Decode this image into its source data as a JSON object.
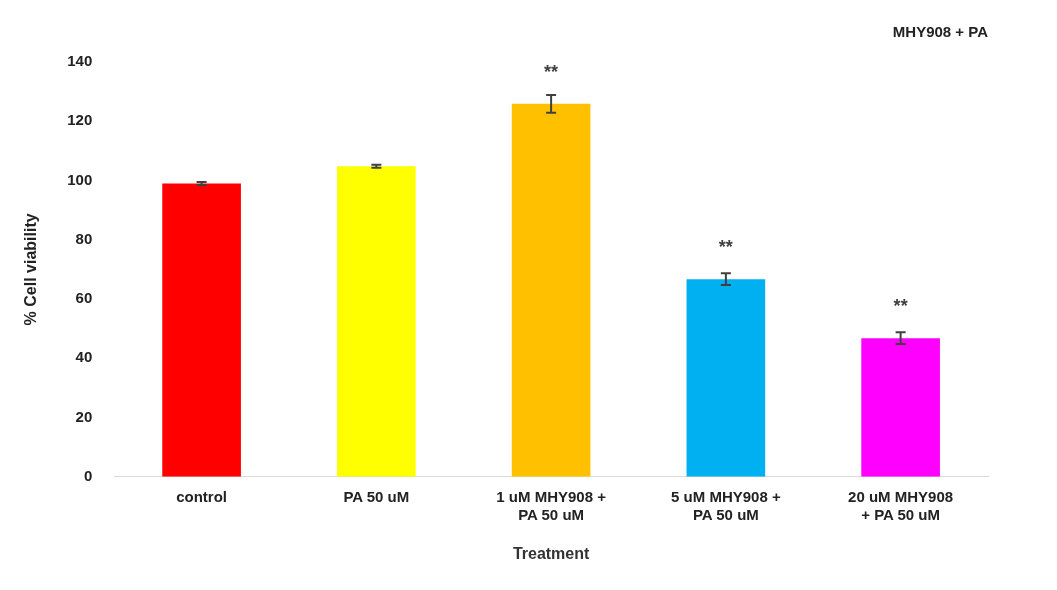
{
  "chart_data": {
    "type": "bar",
    "title": "MHY908 + PA",
    "xlabel": "Treatment",
    "ylabel": "% Cell viability",
    "categories": [
      "control",
      "PA 50 uM",
      "1 uM MHY908 + PA 50 uM",
      "5 uM MHY908 + PA 50 uM",
      "20 uM MHY908 + PA 50 uM"
    ],
    "values": [
      99,
      104.8,
      125.9,
      66.7,
      46.8
    ],
    "colors": [
      "#ff0000",
      "#ffff00",
      "#ffc000",
      "#00b0f0",
      "#ff00ff"
    ],
    "errors": [
      0.5,
      0.5,
      3,
      2,
      2
    ],
    "ylim": [
      0,
      140
    ],
    "yticks": [
      0,
      20,
      40,
      60,
      80,
      100,
      120,
      140
    ],
    "grid": false,
    "legend": false,
    "annotations": [
      {
        "text": "**",
        "x": "1 uM MHY908 + PA 50 uM",
        "y": 125.9
      },
      {
        "text": "**",
        "x": "5 uM MHY908 + PA 50 uM",
        "y": 66.7
      },
      {
        "text": "**",
        "x": "20 uM MHY908 + PA 50 uM",
        "y": 46.8
      }
    ]
  }
}
